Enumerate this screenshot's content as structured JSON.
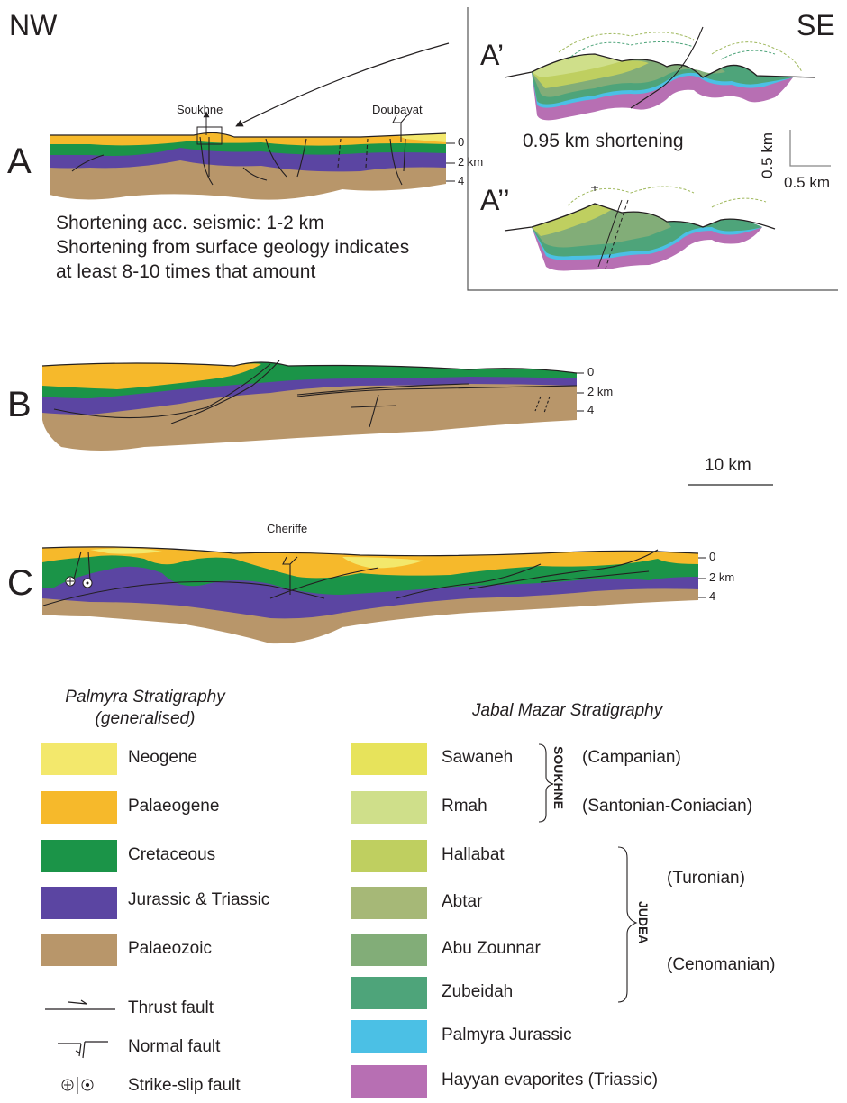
{
  "orientation": {
    "left": "NW",
    "right": "SE"
  },
  "sections": {
    "A": {
      "label": "A",
      "places": [
        "Soukhne",
        "Doubayat"
      ],
      "depth_ticks": [
        "0",
        "2 km",
        "4"
      ],
      "note": "Shortening acc. seismic: 1-2 km Shortening from surface geology indicates at least 8-10 times that amount"
    },
    "A_prime": {
      "label": "A’",
      "shortening": "0.95 km shortening"
    },
    "A_double": {
      "label": "A’’"
    },
    "B": {
      "label": "B",
      "depth_ticks": [
        "0",
        "2 km",
        "4"
      ]
    },
    "C": {
      "label": "C",
      "places": [
        "Cheriffe"
      ],
      "depth_ticks": [
        "0",
        "2 km",
        "4"
      ]
    }
  },
  "scale_bars": {
    "inset_vertical": "0.5 km",
    "inset_horizontal": "0.5 km",
    "main": "10 km"
  },
  "legend_palmyra": {
    "title": "Palmyra Stratigraphy (generalised)",
    "items": [
      {
        "label": "Neogene",
        "color": "#f3e86c"
      },
      {
        "label": "Palaeogene",
        "color": "#f6b92b"
      },
      {
        "label": "Cretaceous",
        "color": "#1b9448"
      },
      {
        "label": "Jurassic & Triassic",
        "color": "#5b45a2"
      },
      {
        "label": "Palaeozoic",
        "color": "#b8966a"
      }
    ]
  },
  "legend_faults": [
    {
      "label": "Thrust fault",
      "icon": "thrust-fault-symbol"
    },
    {
      "label": "Normal fault",
      "icon": "normal-fault-symbol"
    },
    {
      "label": "Strike-slip fault",
      "icon": "strike-slip-fault-symbol"
    }
  ],
  "legend_jabal": {
    "title": "Jabal Mazar Stratigraphy",
    "items": [
      {
        "label": "Sawaneh",
        "color": "#e7e35b"
      },
      {
        "label": "Rmah",
        "color": "#cfdf8a"
      },
      {
        "label": "Hallabat",
        "color": "#bfcf60"
      },
      {
        "label": "Abtar",
        "color": "#a6b877"
      },
      {
        "label": "Abu Zounnar",
        "color": "#82ad78"
      },
      {
        "label": "Zubeidah",
        "color": "#4ea47a"
      },
      {
        "label": "Palmyra Jurassic",
        "color": "#4bc0e5"
      },
      {
        "label": "Hayyan evaporites (Triassic)",
        "color": "#b76fb3"
      }
    ],
    "groups": [
      {
        "name": "SOUKHNE",
        "ages": [
          "(Campanian)",
          "(Santonian-Coniacian)"
        ]
      },
      {
        "name": "JUDEA",
        "ages": [
          "(Turonian)",
          "(Cenomanian)"
        ]
      }
    ]
  }
}
